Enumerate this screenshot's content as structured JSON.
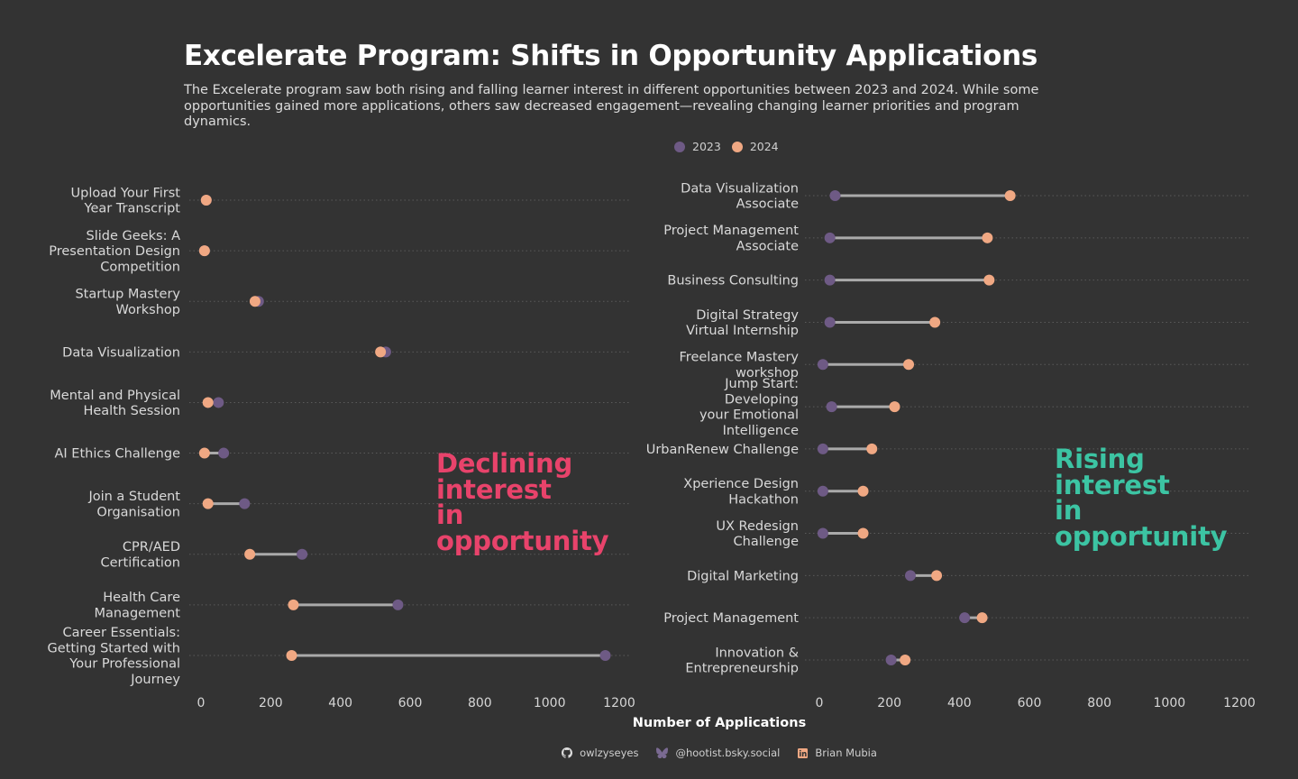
{
  "title": "Excelerate Program: Shifts in Opportunity Applications",
  "subtitle": "The Excelerate program saw both rising and falling learner interest in different opportunities between 2023 and 2024. While some opportunities gained more applications, others saw decreased engagement—revealing changing learner priorities and program dynamics.",
  "legend": [
    {
      "label": "2023",
      "color": "#6e5a85"
    },
    {
      "label": "2024",
      "color": "#f0a883"
    }
  ],
  "x_axis_label": "Number of Applications",
  "callouts": {
    "declining": [
      "Declining",
      "interest",
      "in",
      "opportunity"
    ],
    "rising": [
      "Rising",
      "interest",
      "in",
      "opportunity"
    ]
  },
  "colors": {
    "y2023": "#6e5a85",
    "y2024": "#f0a883",
    "connector": "#aaaaaa",
    "declining": "#e8436b",
    "rising": "#3cc4a3"
  },
  "footer": [
    {
      "icon": "github-icon",
      "text": "owlzyseyes"
    },
    {
      "icon": "bluesky-butterfly-icon",
      "text": "@hootist.bsky.social"
    },
    {
      "icon": "linkedin-icon",
      "text": "Brian Mubia"
    }
  ],
  "chart_data": [
    {
      "type": "dumbbell",
      "panel": "declining",
      "xlim": [
        0,
        1200
      ],
      "xticks": [
        0,
        200,
        400,
        600,
        800,
        1000,
        1200
      ],
      "series_names": [
        "2023",
        "2024"
      ],
      "categories": [
        {
          "label": [
            "Upload Your First",
            "Year Transcript"
          ],
          "y2023": 15,
          "y2024": 15
        },
        {
          "label": [
            "Slide Geeks: A",
            "Presentation Design",
            "Competition"
          ],
          "y2023": 10,
          "y2024": 10
        },
        {
          "label": [
            "Startup Mastery",
            "Workshop"
          ],
          "y2023": 165,
          "y2024": 155
        },
        {
          "label": [
            "Data Visualization"
          ],
          "y2023": 530,
          "y2024": 515
        },
        {
          "label": [
            "Mental and Physical",
            "Health Session"
          ],
          "y2023": 50,
          "y2024": 20
        },
        {
          "label": [
            "AI Ethics Challenge"
          ],
          "y2023": 65,
          "y2024": 10
        },
        {
          "label": [
            "Join a Student",
            "Organisation"
          ],
          "y2023": 125,
          "y2024": 20
        },
        {
          "label": [
            "CPR/AED",
            "Certification"
          ],
          "y2023": 290,
          "y2024": 140
        },
        {
          "label": [
            "Health Care",
            "Management"
          ],
          "y2023": 565,
          "y2024": 265
        },
        {
          "label": [
            "Career Essentials:",
            "Getting Started with",
            "Your Professional",
            "Journey"
          ],
          "y2023": 1160,
          "y2024": 260
        }
      ]
    },
    {
      "type": "dumbbell",
      "panel": "rising",
      "xlim": [
        0,
        1200
      ],
      "xticks": [
        0,
        200,
        400,
        600,
        800,
        1000,
        1200
      ],
      "series_names": [
        "2023",
        "2024"
      ],
      "categories": [
        {
          "label": [
            "Data Visualization",
            "Associate"
          ],
          "y2023": 45,
          "y2024": 545
        },
        {
          "label": [
            "Project Management",
            "Associate"
          ],
          "y2023": 30,
          "y2024": 480
        },
        {
          "label": [
            "Business Consulting"
          ],
          "y2023": 30,
          "y2024": 485
        },
        {
          "label": [
            "Digital Strategy",
            "Virtual Internship"
          ],
          "y2023": 30,
          "y2024": 330
        },
        {
          "label": [
            "Freelance Mastery",
            "workshop"
          ],
          "y2023": 10,
          "y2024": 255
        },
        {
          "label": [
            "Jump Start:",
            "Developing",
            "your Emotional",
            "Intelligence"
          ],
          "y2023": 35,
          "y2024": 215
        },
        {
          "label": [
            "UrbanRenew Challenge"
          ],
          "y2023": 10,
          "y2024": 150
        },
        {
          "label": [
            "Xperience Design",
            "Hackathon"
          ],
          "y2023": 10,
          "y2024": 125
        },
        {
          "label": [
            "UX Redesign",
            "Challenge"
          ],
          "y2023": 10,
          "y2024": 125
        },
        {
          "label": [
            "Digital Marketing"
          ],
          "y2023": 260,
          "y2024": 335
        },
        {
          "label": [
            "Project Management"
          ],
          "y2023": 415,
          "y2024": 465
        },
        {
          "label": [
            "Innovation &",
            "Entrepreneurship"
          ],
          "y2023": 205,
          "y2024": 245
        }
      ]
    }
  ]
}
